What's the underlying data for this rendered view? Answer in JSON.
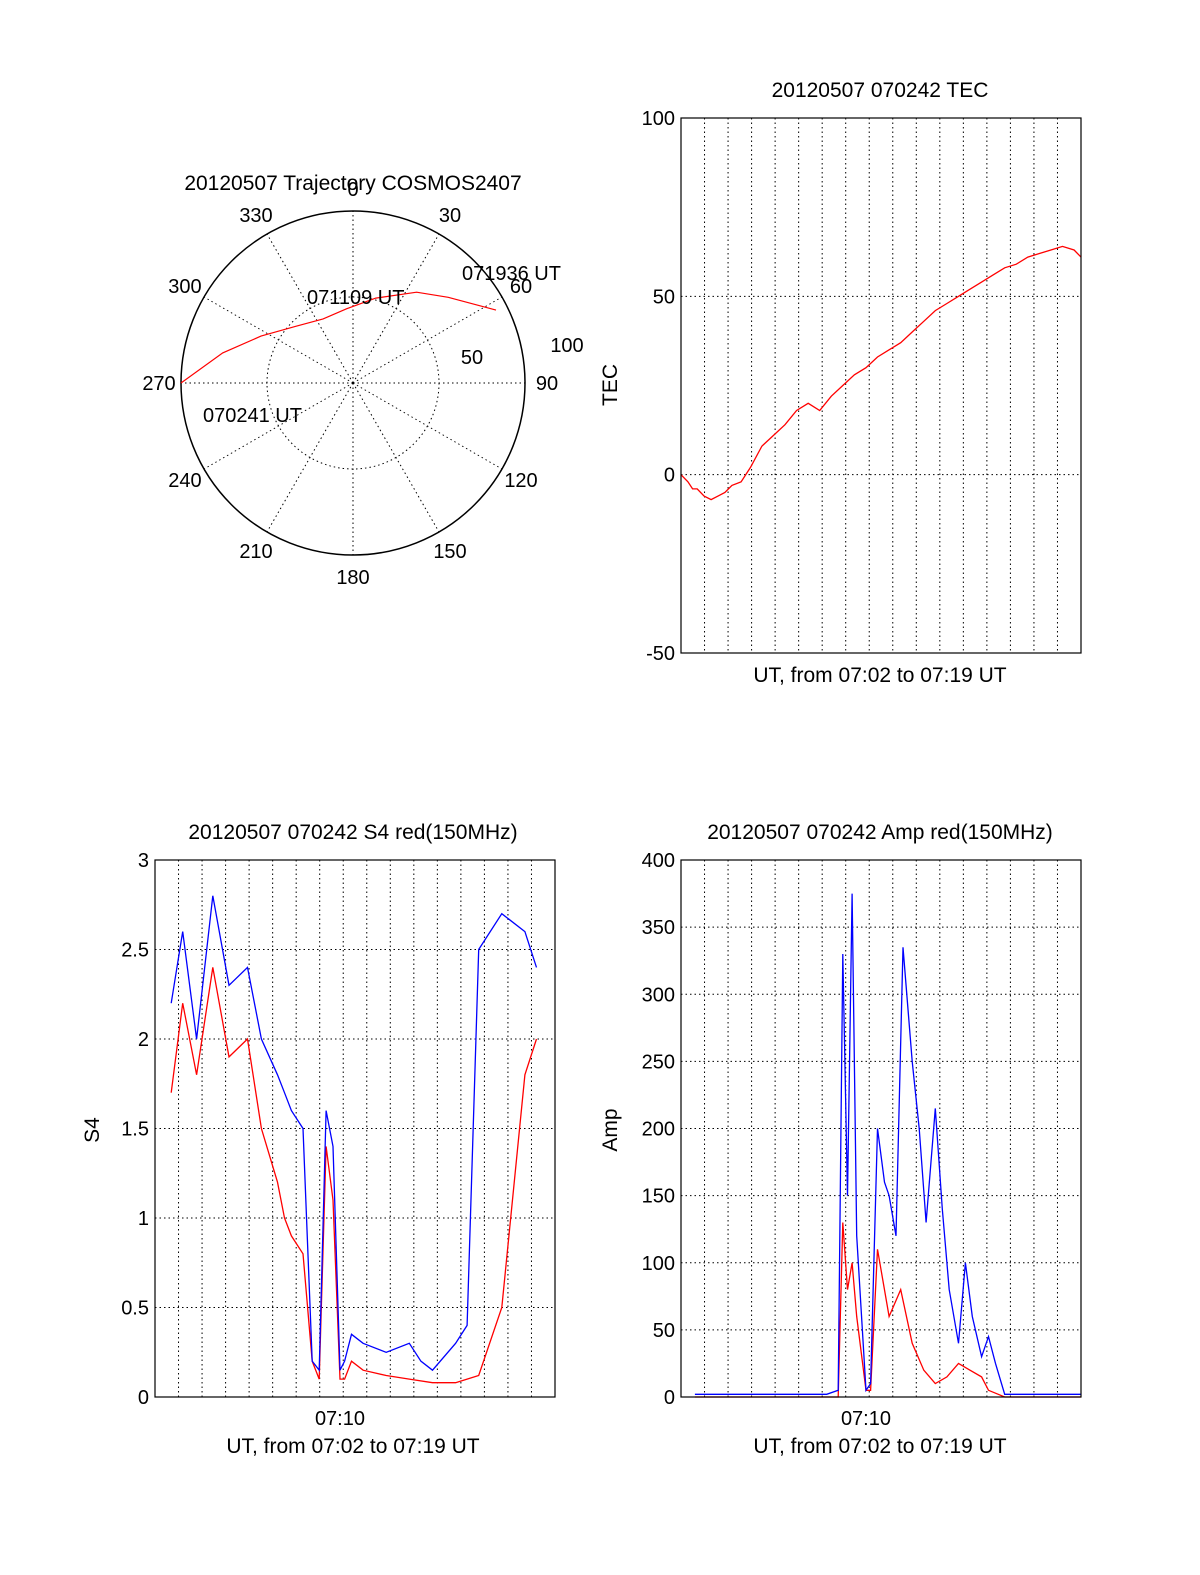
{
  "chart_data": [
    {
      "type": "polar",
      "title": "20120507 Trajectory COSMOS2407",
      "angle_labels": [
        "0",
        "30",
        "60",
        "90",
        "120",
        "150",
        "180",
        "210",
        "240",
        "270",
        "300",
        "330"
      ],
      "radial_labels": [
        "50",
        "100"
      ],
      "rlim": [
        0,
        100
      ],
      "grid": true,
      "series": [
        {
          "color": "#ff0000",
          "points": [
            {
              "az": 270,
              "el": 0
            },
            {
              "az": 283,
              "el": 20
            },
            {
              "az": 297,
              "el": 36
            },
            {
              "az": 315,
              "el": 48
            },
            {
              "az": 335,
              "el": 53
            },
            {
              "az": 355,
              "el": 51
            },
            {
              "az": 15,
              "el": 44
            },
            {
              "az": 35,
              "el": 32
            },
            {
              "az": 48,
              "el": 23
            },
            {
              "az": 63,
              "el": 6
            }
          ]
        }
      ],
      "annotations": [
        "070241 UT",
        "071109 UT",
        "071936 UT"
      ]
    },
    {
      "type": "line",
      "title": "20120507 070242 TEC",
      "xlabel": "UT, from 07:02 to 07:19 UT",
      "ylabel": "TEC",
      "xlim": [
        0,
        17.3
      ],
      "ylim": [
        -50,
        100
      ],
      "yticks": [
        "-50",
        "0",
        "50",
        "100"
      ],
      "grid": true,
      "series": [
        {
          "color": "#ff0000",
          "x": [
            0.0,
            0.3,
            0.5,
            0.7,
            1.0,
            1.3,
            1.6,
            1.9,
            2.2,
            2.6,
            3.0,
            3.5,
            4.0,
            4.5,
            5.0,
            5.5,
            6.0,
            6.5,
            7.0,
            7.5,
            8.0,
            8.5,
            9.0,
            9.5,
            10.0,
            10.5,
            11.0,
            11.5,
            12.0,
            12.5,
            13.0,
            13.5,
            14.0,
            14.5,
            15.0,
            15.5,
            16.0,
            16.5,
            17.0,
            17.3
          ],
          "y": [
            0,
            -2,
            -4,
            -4,
            -6,
            -7,
            -6,
            -5,
            -3,
            -2,
            2,
            8,
            11,
            14,
            18,
            20,
            18,
            22,
            25,
            28,
            30,
            33,
            35,
            37,
            40,
            43,
            46,
            48,
            50,
            52,
            54,
            56,
            58,
            59,
            61,
            62,
            63,
            64,
            63,
            61
          ]
        }
      ]
    },
    {
      "type": "line",
      "title": "20120507 070242 S4 red(150MHz)",
      "xlabel": "UT, from 07:02 to 07:19 UT",
      "ylabel": "S4",
      "xlim": [
        0,
        17.3
      ],
      "ylim": [
        0,
        3
      ],
      "yticks": [
        "0",
        "0.5",
        "1",
        "1.5",
        "2",
        "2.5",
        "3"
      ],
      "xticks": [
        {
          "x": 8,
          "label": "07:10"
        }
      ],
      "grid": true,
      "series": [
        {
          "color": "#ff0000",
          "x": [
            0.7,
            1.2,
            1.8,
            2.5,
            3.2,
            4.0,
            4.6,
            5.3,
            5.6,
            5.9,
            6.4,
            6.8,
            7.1,
            7.4,
            7.7,
            8.0,
            8.2,
            8.5,
            9.0,
            10.0,
            11.0,
            12.0,
            13.0,
            13.5,
            14.0,
            15.0,
            16.0,
            16.5
          ],
          "y": [
            1.7,
            2.2,
            1.8,
            2.4,
            1.9,
            2.0,
            1.5,
            1.2,
            1.0,
            0.9,
            0.8,
            0.2,
            0.1,
            1.4,
            1.1,
            0.1,
            0.1,
            0.2,
            0.15,
            0.12,
            0.1,
            0.08,
            0.08,
            0.1,
            0.12,
            0.5,
            1.8,
            2.0
          ]
        },
        {
          "color": "#0000ff",
          "x": [
            0.7,
            1.2,
            1.8,
            2.5,
            3.2,
            4.0,
            4.6,
            5.3,
            5.6,
            5.9,
            6.4,
            6.8,
            7.1,
            7.4,
            7.7,
            8.0,
            8.2,
            8.5,
            9.0,
            10.0,
            11.0,
            11.5,
            12.0,
            13.0,
            13.5,
            14.0,
            15.0,
            16.0,
            16.5
          ],
          "y": [
            2.2,
            2.6,
            2.0,
            2.8,
            2.3,
            2.4,
            2.0,
            1.8,
            1.7,
            1.6,
            1.5,
            0.2,
            0.15,
            1.6,
            1.4,
            0.15,
            0.2,
            0.35,
            0.3,
            0.25,
            0.3,
            0.2,
            0.15,
            0.3,
            0.4,
            2.5,
            2.7,
            2.6,
            2.4
          ]
        }
      ]
    },
    {
      "type": "line",
      "title": "20120507 070242 Amp red(150MHz)",
      "xlabel": "UT, from 07:02 to 07:19 UT",
      "ylabel": "Amp",
      "xlim": [
        0,
        17.3
      ],
      "ylim": [
        0,
        400
      ],
      "yticks": [
        "0",
        "50",
        "100",
        "150",
        "200",
        "250",
        "300",
        "350",
        "400"
      ],
      "xticks": [
        {
          "x": 8,
          "label": "07:10"
        }
      ],
      "grid": true,
      "series": [
        {
          "color": "#ff0000",
          "x": [
            0.6,
            6.3,
            6.8,
            7.0,
            7.2,
            7.4,
            7.6,
            8.0,
            8.2,
            8.5,
            9.0,
            9.5,
            10.0,
            10.5,
            11.0,
            11.5,
            12.0,
            12.5,
            13.0,
            13.3,
            14.0,
            17.3
          ],
          "y": [
            0,
            0,
            0,
            130,
            80,
            100,
            60,
            5,
            5,
            110,
            60,
            80,
            40,
            20,
            10,
            15,
            25,
            20,
            15,
            5,
            0,
            0
          ]
        },
        {
          "color": "#0000ff",
          "x": [
            0.6,
            6.3,
            6.8,
            7.0,
            7.2,
            7.4,
            7.6,
            8.0,
            8.2,
            8.5,
            8.8,
            9.0,
            9.3,
            9.6,
            10.0,
            10.3,
            10.6,
            11.0,
            11.3,
            11.6,
            12.0,
            12.3,
            12.6,
            13.0,
            13.3,
            13.6,
            14.0,
            17.3
          ],
          "y": [
            2,
            2,
            5,
            330,
            150,
            375,
            120,
            5,
            10,
            200,
            160,
            150,
            120,
            335,
            250,
            200,
            130,
            215,
            140,
            80,
            40,
            100,
            60,
            30,
            45,
            25,
            2,
            2
          ]
        }
      ]
    }
  ]
}
